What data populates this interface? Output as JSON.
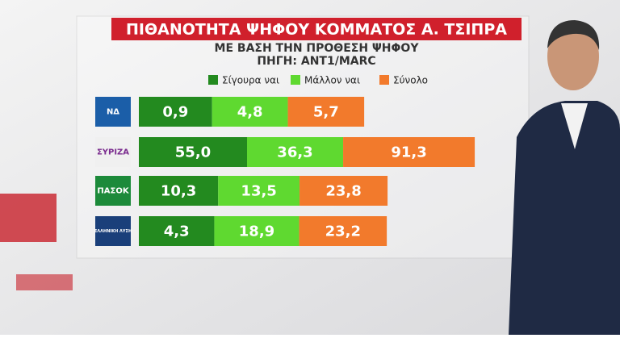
{
  "chart_data": {
    "type": "bar",
    "orientation": "horizontal",
    "stacked": true,
    "title": "ΠΙΘΑΝΟΤΗΤΑ ΨΗΦΟΥ ΚΟΜΜΑΤΟΣ Α. ΤΣΙΠΡΑ",
    "subtitle": "ΜΕ ΒΑΣΗ ΤΗΝ ΠΡΟΘΕΣΗ ΨΗΦΟΥ",
    "source": "ΠΗΓΗ: ANT1/MARC",
    "categories": [
      "ΝΔ",
      "ΣΥΡΙΖΑ",
      "ΠΑΣΟΚ",
      "ΕΛΛΗΝΙΚΗ ΛΥΣΗ"
    ],
    "series": [
      {
        "name": "Σίγουρα ναι",
        "color": "#238a1f",
        "values": [
          0.9,
          55.0,
          10.3,
          4.3
        ],
        "value_labels": [
          "0,9",
          "55,0",
          "10,3",
          "4,3"
        ]
      },
      {
        "name": "Μάλλον ναι",
        "color": "#5fd930",
        "values": [
          4.8,
          36.3,
          13.5,
          18.9
        ],
        "value_labels": [
          "4,8",
          "36,3",
          "13,5",
          "18,9"
        ]
      },
      {
        "name": "Σύνολο",
        "color": "#f27a2c",
        "values": [
          5.7,
          91.3,
          23.8,
          23.2
        ],
        "value_labels": [
          "5,7",
          "91,3",
          "23,8",
          "23,2"
        ]
      }
    ]
  }
}
